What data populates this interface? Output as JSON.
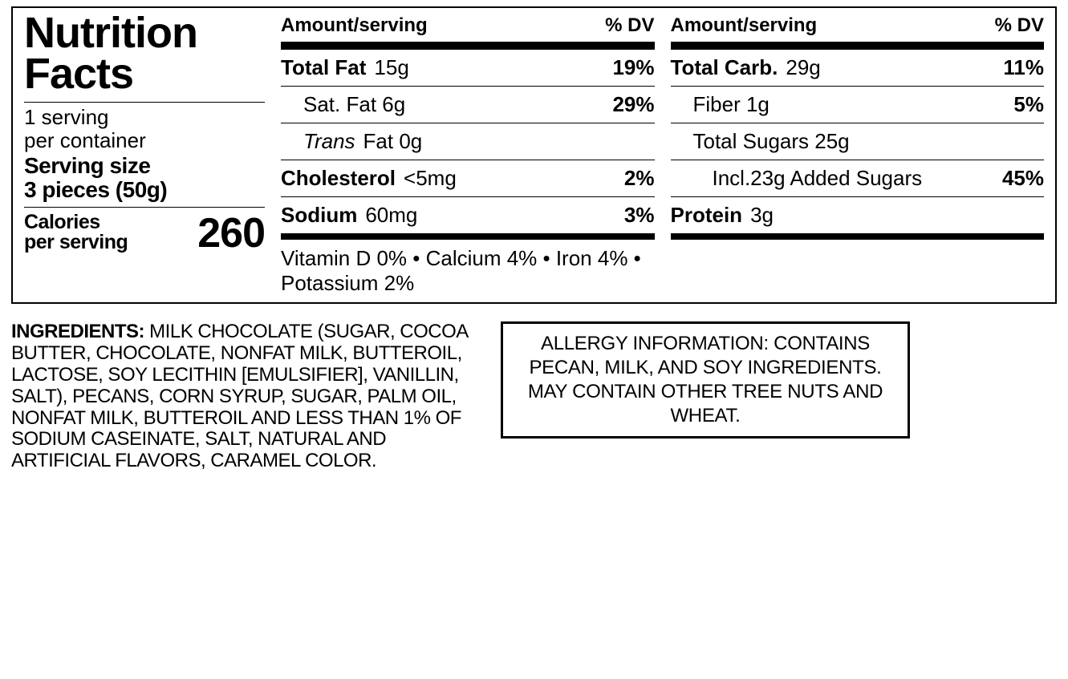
{
  "title_line1": "Nutrition",
  "title_line2": "Facts",
  "servings_line1": "1 serving",
  "servings_line2": "per container",
  "serving_size_label": "Serving size",
  "serving_size_value": "3 pieces (50g)",
  "calories_label_line1": "Calories",
  "calories_label_line2": "per serving",
  "calories_value": "260",
  "header_amount": "Amount/serving",
  "header_dv": "% DV",
  "col1": [
    {
      "bold": "Total Fat",
      "value": "15g",
      "dv": "19%",
      "indent": 0
    },
    {
      "plain": "Sat. Fat 6g",
      "dv": "29%",
      "indent": 1
    },
    {
      "italic": "Trans",
      "plain_after": " Fat 0g",
      "dv": "",
      "indent": 1
    },
    {
      "bold": "Cholesterol",
      "value": "<5mg",
      "dv": "2%",
      "indent": 0
    },
    {
      "bold": "Sodium",
      "value": "60mg",
      "dv": "3%",
      "indent": 0
    }
  ],
  "col2": [
    {
      "bold": "Total Carb.",
      "value": "29g",
      "dv": "11%",
      "indent": 0
    },
    {
      "plain": "Fiber 1g",
      "dv": "5%",
      "indent": 1
    },
    {
      "plain": "Total Sugars 25g",
      "dv": "",
      "indent": 1
    },
    {
      "plain": "Incl.23g Added Sugars",
      "dv": "45%",
      "indent": 2
    },
    {
      "bold": "Protein",
      "value": "3g",
      "dv": "",
      "indent": 0
    }
  ],
  "vitamins": "Vitamin D 0% • Calcium 4% • Iron 4% • Potassium 2%",
  "ingredients_lead": "INGREDIENTS:",
  "ingredients_body": " MILK CHOCOLATE (SUGAR, COCOA BUTTER, CHOCOLATE, NONFAT MILK, BUTTEROIL, LACTOSE, SOY LECITHIN [EMULSIFIER], VANILLIN, SALT), PECANS, CORN SYRUP, SUGAR, PALM OIL, NONFAT MILK,  BUTTEROIL AND LESS THAN 1% OF SODIUM CASEINATE, SALT, NATURAL AND ARTIFICIAL FLAVORS, CARAMEL COLOR.",
  "allergy": "ALLERGY INFORMATION: CONTAINS PECAN, MILK, AND SOY INGREDIENTS. MAY CONTAIN OTHER TREE NUTS AND WHEAT.",
  "colors": {
    "text": "#000000",
    "bg": "#ffffff"
  }
}
